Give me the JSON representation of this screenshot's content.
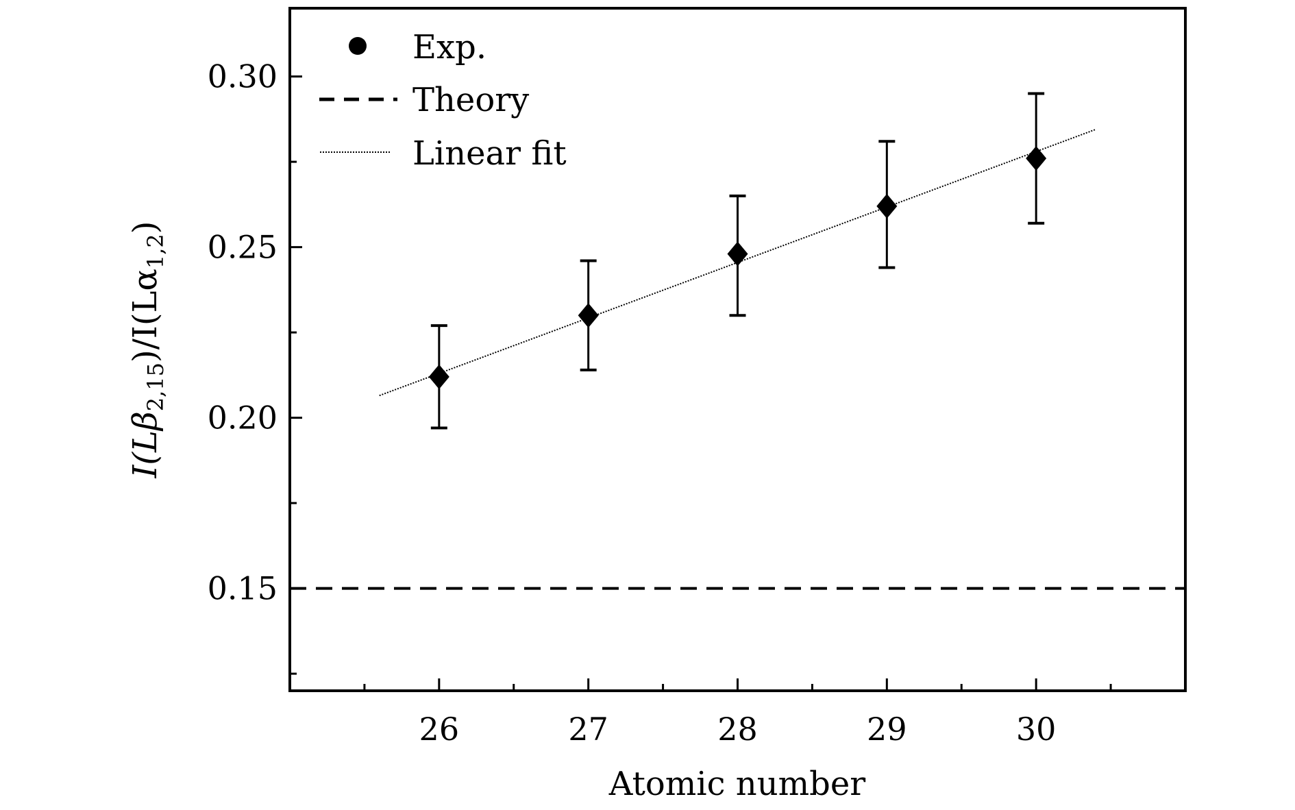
{
  "chart_data": {
    "type": "scatter",
    "xlabel": "Atomic number",
    "ylabel": {
      "prefix": "I(Lβ",
      "sub1": "2,15",
      "mid": ")/I(Lα",
      "sub2": "1,2",
      "suffix": ")"
    },
    "xlim": [
      25,
      31
    ],
    "ylim": [
      0.12,
      0.32
    ],
    "xticks": [
      26,
      27,
      28,
      29,
      30
    ],
    "xtick_labels": [
      "26",
      "27",
      "28",
      "29",
      "30"
    ],
    "yticks": [
      0.15,
      0.2,
      0.25,
      0.3
    ],
    "ytick_labels": [
      "0.15",
      "0.20",
      "0.25",
      "0.30"
    ],
    "grid": false,
    "legend_position": "top-left",
    "series": [
      {
        "name": "Exp.",
        "kind": "points-with-errorbars",
        "marker": "diamond",
        "x": [
          26,
          27,
          28,
          29,
          30
        ],
        "y": [
          0.212,
          0.23,
          0.248,
          0.262,
          0.276
        ],
        "err_low": [
          0.197,
          0.214,
          0.23,
          0.244,
          0.257
        ],
        "err_high": [
          0.227,
          0.246,
          0.265,
          0.281,
          0.295
        ]
      },
      {
        "name": "Theory",
        "kind": "hline",
        "style": "dashed",
        "y": 0.15
      },
      {
        "name": "Linear fit",
        "kind": "line",
        "style": "dotted",
        "x": [
          25.6,
          30.4
        ],
        "y": [
          0.2065,
          0.2845
        ]
      }
    ],
    "colors": {
      "all": "#000000"
    }
  }
}
